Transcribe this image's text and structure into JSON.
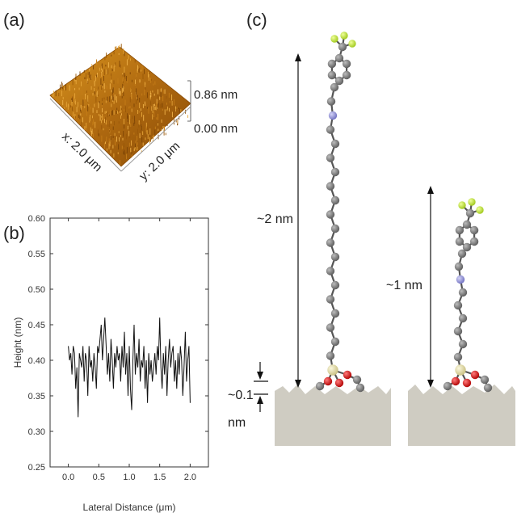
{
  "panels": {
    "a": {
      "label": "(a)",
      "z_max": "0.86 nm",
      "z_min": "0.00 nm",
      "x_axis": "x: 2.0 μm",
      "y_axis": "y: 2.0 μm"
    },
    "b": {
      "label": "(b)"
    },
    "c": {
      "label": "(c)",
      "long_height": "~2 nm",
      "short_height": "~1 nm",
      "roughness_value": "~0.1",
      "roughness_unit": "nm"
    }
  },
  "colors": {
    "afm_surface": "#b06a10",
    "carbon": "#6e6e6e",
    "nitrogen": "#8a8ad8",
    "oxygen": "#d40000",
    "fluorine": "#b8e22a",
    "silicon": "#e2dca0",
    "substrate": "#cfccc2"
  },
  "chart_data": {
    "type": "line",
    "title": "",
    "xlabel": "Lateral Distance (μm)",
    "ylabel": "Height (nm)",
    "xlim": [
      -0.3,
      2.3
    ],
    "ylim": [
      0.25,
      0.6
    ],
    "xticks": [
      "0.0",
      "0.5",
      "1.0",
      "1.5",
      "2.0"
    ],
    "yticks": [
      "0.25",
      "0.30",
      "0.35",
      "0.40",
      "0.45",
      "0.50",
      "0.55",
      "0.60"
    ],
    "x": [
      0.0,
      0.02,
      0.04,
      0.06,
      0.08,
      0.1,
      0.12,
      0.14,
      0.16,
      0.18,
      0.2,
      0.22,
      0.24,
      0.26,
      0.28,
      0.3,
      0.32,
      0.34,
      0.36,
      0.38,
      0.4,
      0.42,
      0.44,
      0.46,
      0.48,
      0.5,
      0.52,
      0.54,
      0.56,
      0.58,
      0.6,
      0.62,
      0.64,
      0.66,
      0.68,
      0.7,
      0.72,
      0.74,
      0.76,
      0.78,
      0.8,
      0.82,
      0.84,
      0.86,
      0.88,
      0.9,
      0.92,
      0.94,
      0.96,
      0.98,
      1.0,
      1.02,
      1.04,
      1.06,
      1.08,
      1.1,
      1.12,
      1.14,
      1.16,
      1.18,
      1.2,
      1.22,
      1.24,
      1.26,
      1.28,
      1.3,
      1.32,
      1.34,
      1.36,
      1.38,
      1.4,
      1.42,
      1.44,
      1.46,
      1.48,
      1.5,
      1.52,
      1.54,
      1.56,
      1.58,
      1.6,
      1.62,
      1.64,
      1.66,
      1.68,
      1.7,
      1.72,
      1.74,
      1.76,
      1.78,
      1.8,
      1.82,
      1.84,
      1.86,
      1.88,
      1.9,
      1.92,
      1.94,
      1.96,
      1.98,
      2.0
    ],
    "series": [
      {
        "values": [
          0.42,
          0.4,
          0.41,
          0.38,
          0.42,
          0.41,
          0.36,
          0.39,
          0.32,
          0.41,
          0.4,
          0.39,
          0.42,
          0.37,
          0.41,
          0.4,
          0.35,
          0.42,
          0.39,
          0.4,
          0.37,
          0.41,
          0.39,
          0.36,
          0.42,
          0.41,
          0.43,
          0.45,
          0.4,
          0.43,
          0.46,
          0.42,
          0.38,
          0.41,
          0.37,
          0.43,
          0.4,
          0.36,
          0.41,
          0.39,
          0.42,
          0.4,
          0.41,
          0.37,
          0.42,
          0.39,
          0.44,
          0.38,
          0.41,
          0.35,
          0.42,
          0.36,
          0.33,
          0.4,
          0.45,
          0.38,
          0.41,
          0.39,
          0.43,
          0.37,
          0.4,
          0.39,
          0.42,
          0.36,
          0.4,
          0.34,
          0.41,
          0.38,
          0.4,
          0.37,
          0.39,
          0.41,
          0.38,
          0.42,
          0.4,
          0.46,
          0.39,
          0.36,
          0.41,
          0.38,
          0.42,
          0.35,
          0.4,
          0.43,
          0.39,
          0.41,
          0.42,
          0.37,
          0.4,
          0.36,
          0.41,
          0.38,
          0.42,
          0.4,
          0.35,
          0.39,
          0.44,
          0.37,
          0.4,
          0.42,
          0.34
        ]
      }
    ]
  }
}
